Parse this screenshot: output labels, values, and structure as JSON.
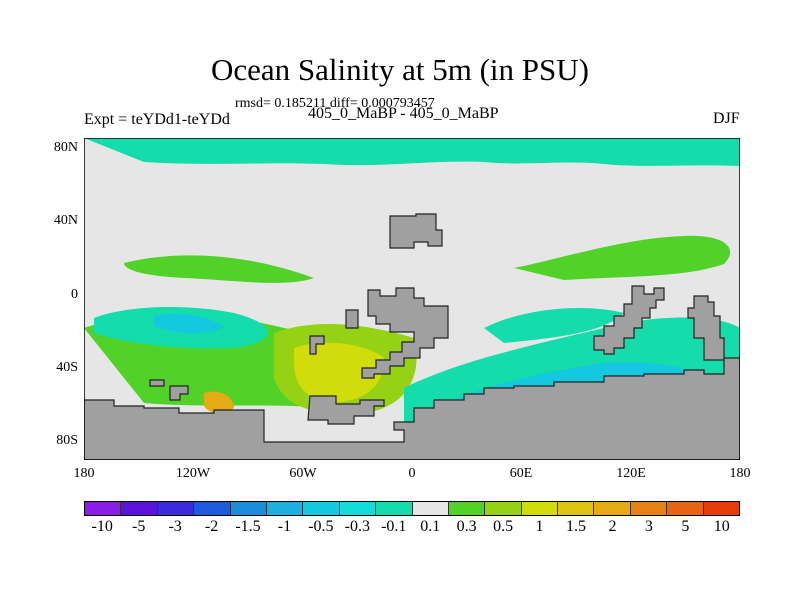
{
  "title": "Ocean Salinity at 5m (in PSU)",
  "stats": "rmsd= 0.185211 diff= 0.000793457",
  "left_label": "Expt = teYDd1-teYDd",
  "center_label": "405_0_MaBP - 405_0_MaBP",
  "right_label": "DJF",
  "y_ticks": [
    "80N",
    "40N",
    "0",
    "40S",
    "80S"
  ],
  "y_tick_values": [
    80,
    40,
    0,
    -40,
    -80
  ],
  "x_ticks": [
    "180",
    "120W",
    "60W",
    "0",
    "60E",
    "120E",
    "180"
  ],
  "x_tick_values": [
    -180,
    -120,
    -60,
    0,
    60,
    120,
    180
  ],
  "colorbar": {
    "labels": [
      "-10",
      "-5",
      "-3",
      "-2",
      "-1.5",
      "-1",
      "-0.5",
      "-0.3",
      "-0.1",
      "0.1",
      "0.3",
      "0.5",
      "1",
      "1.5",
      "2",
      "3",
      "5",
      "10"
    ],
    "colors": [
      "#8a1ee6",
      "#5a14d8",
      "#3a2cd8",
      "#1e5adc",
      "#1e8cdc",
      "#1eaee0",
      "#14c8e0",
      "#14dcd8",
      "#14dcaa",
      "#e6e6e6",
      "#50d228",
      "#96d214",
      "#d2dc0a",
      "#dcc314",
      "#e6aa14",
      "#e68214",
      "#e66414",
      "#e63c0a"
    ]
  }
}
